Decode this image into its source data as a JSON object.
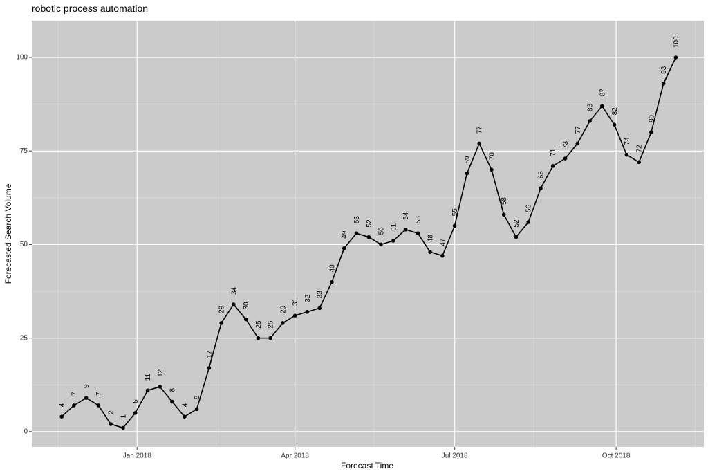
{
  "chart_data": {
    "type": "line",
    "title": "robotic process automation",
    "x_label": "Forecast Time",
    "y_label": "Forecasted Search Volume",
    "x": [
      "2017-11-19",
      "2017-11-26",
      "2017-12-03",
      "2017-12-10",
      "2017-12-17",
      "2017-12-24",
      "2017-12-31",
      "2018-01-07",
      "2018-01-14",
      "2018-01-21",
      "2018-01-28",
      "2018-02-04",
      "2018-02-11",
      "2018-02-18",
      "2018-02-25",
      "2018-03-04",
      "2018-03-11",
      "2018-03-18",
      "2018-03-25",
      "2018-04-01",
      "2018-04-08",
      "2018-04-15",
      "2018-04-22",
      "2018-04-29",
      "2018-05-06",
      "2018-05-13",
      "2018-05-20",
      "2018-05-27",
      "2018-06-03",
      "2018-06-10",
      "2018-06-17",
      "2018-06-24",
      "2018-07-01",
      "2018-07-08",
      "2018-07-15",
      "2018-07-22",
      "2018-07-29",
      "2018-08-05",
      "2018-08-12",
      "2018-08-19",
      "2018-08-26",
      "2018-09-02",
      "2018-09-09",
      "2018-09-16",
      "2018-09-23",
      "2018-09-30",
      "2018-10-07",
      "2018-10-14",
      "2018-10-21",
      "2018-10-28",
      "2018-11-04"
    ],
    "series": [
      {
        "name": null,
        "color": "#000000",
        "values": [
          4,
          7,
          9,
          7,
          2,
          1,
          5,
          11,
          12,
          8,
          4,
          6,
          17,
          29,
          34,
          30,
          25,
          25,
          29,
          31,
          32,
          33,
          40,
          49,
          53,
          52,
          50,
          51,
          54,
          53,
          48,
          47,
          55,
          69,
          77,
          70,
          58,
          52,
          56,
          65,
          71,
          73,
          77,
          83,
          87,
          82,
          74,
          72,
          80,
          93,
          100
        ]
      }
    ],
    "xlim": [
      "2017-11-02",
      "2018-11-20"
    ],
    "xticks": [
      {
        "value": "2018-01-01",
        "label": "Jan 2018"
      },
      {
        "value": "2018-04-01",
        "label": "Apr 2018"
      },
      {
        "value": "2018-07-01",
        "label": "Jul 2018"
      },
      {
        "value": "2018-10-01",
        "label": "Oct 2018"
      }
    ],
    "ylim": [
      -4.1,
      109.8
    ],
    "yticks": [
      0,
      25,
      50,
      75,
      100
    ],
    "grid": true
  }
}
